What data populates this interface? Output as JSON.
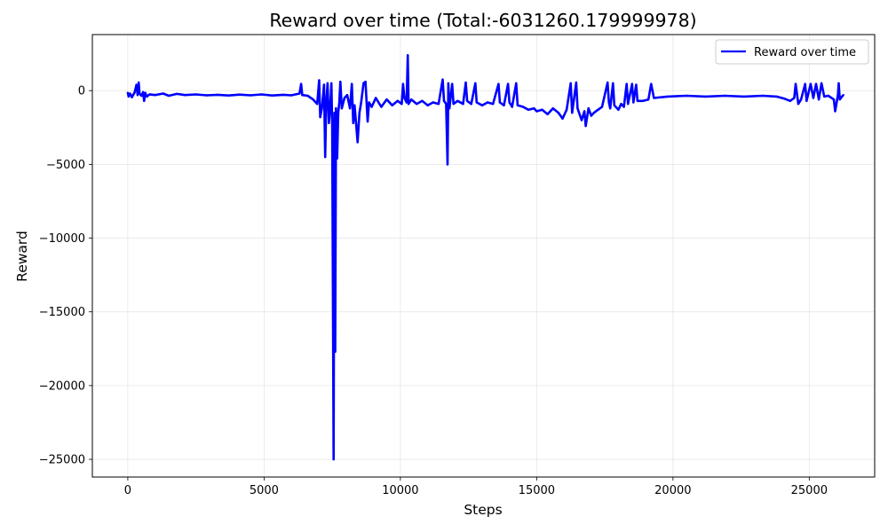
{
  "chart_data": {
    "type": "line",
    "title": "Reward over time (Total:-6031260.179999978)",
    "xlabel": "Steps",
    "ylabel": "Reward",
    "xlim": [
      -1300,
      27400
    ],
    "ylim": [
      -26200,
      3800
    ],
    "x_ticks": [
      0,
      5000,
      10000,
      15000,
      20000,
      25000
    ],
    "x_tick_labels": [
      "0",
      "5000",
      "10000",
      "15000",
      "20000",
      "25000"
    ],
    "y_ticks": [
      0,
      -5000,
      -10000,
      -15000,
      -20000,
      -25000
    ],
    "y_tick_labels": [
      "0",
      "−5000",
      "−10000",
      "−15000",
      "−20000",
      "−25000"
    ],
    "grid": true,
    "legend_position": "top-right",
    "series": [
      {
        "name": "Reward over time",
        "color": "#0000ff",
        "points": [
          [
            0,
            -150
          ],
          [
            30,
            -400
          ],
          [
            80,
            -200
          ],
          [
            150,
            -450
          ],
          [
            250,
            -120
          ],
          [
            320,
            400
          ],
          [
            360,
            -300
          ],
          [
            400,
            550
          ],
          [
            430,
            -200
          ],
          [
            500,
            -350
          ],
          [
            560,
            -100
          ],
          [
            600,
            -700
          ],
          [
            640,
            -150
          ],
          [
            700,
            -400
          ],
          [
            800,
            -250
          ],
          [
            1000,
            -300
          ],
          [
            1300,
            -200
          ],
          [
            1500,
            -350
          ],
          [
            1800,
            -220
          ],
          [
            2100,
            -300
          ],
          [
            2500,
            -260
          ],
          [
            2900,
            -320
          ],
          [
            3300,
            -280
          ],
          [
            3700,
            -330
          ],
          [
            4100,
            -270
          ],
          [
            4500,
            -320
          ],
          [
            4900,
            -260
          ],
          [
            5300,
            -330
          ],
          [
            5700,
            -280
          ],
          [
            6000,
            -320
          ],
          [
            6300,
            -200
          ],
          [
            6360,
            450
          ],
          [
            6400,
            -300
          ],
          [
            6600,
            -350
          ],
          [
            6800,
            -600
          ],
          [
            6950,
            -900
          ],
          [
            7020,
            700
          ],
          [
            7060,
            -1800
          ],
          [
            7120,
            -1200
          ],
          [
            7200,
            400
          ],
          [
            7240,
            -4500
          ],
          [
            7280,
            -800
          ],
          [
            7330,
            500
          ],
          [
            7380,
            -2200
          ],
          [
            7430,
            -1000
          ],
          [
            7470,
            500
          ],
          [
            7500,
            -2400
          ],
          [
            7550,
            -25000
          ],
          [
            7580,
            -1500
          ],
          [
            7610,
            -17700
          ],
          [
            7640,
            -1200
          ],
          [
            7680,
            -4600
          ],
          [
            7720,
            -1500
          ],
          [
            7760,
            -800
          ],
          [
            7800,
            600
          ],
          [
            7850,
            -1200
          ],
          [
            7950,
            -500
          ],
          [
            8050,
            -300
          ],
          [
            8150,
            -1200
          ],
          [
            8220,
            450
          ],
          [
            8270,
            -2200
          ],
          [
            8320,
            -1000
          ],
          [
            8380,
            -2300
          ],
          [
            8430,
            -3500
          ],
          [
            8500,
            -1500
          ],
          [
            8560,
            -800
          ],
          [
            8650,
            500
          ],
          [
            8720,
            600
          ],
          [
            8800,
            -2100
          ],
          [
            8850,
            -800
          ],
          [
            8950,
            -1100
          ],
          [
            9100,
            -500
          ],
          [
            9300,
            -1100
          ],
          [
            9500,
            -600
          ],
          [
            9700,
            -1000
          ],
          [
            9900,
            -700
          ],
          [
            10050,
            -900
          ],
          [
            10100,
            450
          ],
          [
            10150,
            -500
          ],
          [
            10230,
            -800
          ],
          [
            10270,
            2400
          ],
          [
            10300,
            -900
          ],
          [
            10400,
            -600
          ],
          [
            10600,
            -900
          ],
          [
            10800,
            -700
          ],
          [
            11000,
            -1000
          ],
          [
            11200,
            -800
          ],
          [
            11400,
            -900
          ],
          [
            11550,
            750
          ],
          [
            11600,
            -700
          ],
          [
            11680,
            -900
          ],
          [
            11730,
            -5000
          ],
          [
            11760,
            500
          ],
          [
            11800,
            -1200
          ],
          [
            11900,
            450
          ],
          [
            11950,
            -900
          ],
          [
            12100,
            -700
          ],
          [
            12300,
            -900
          ],
          [
            12400,
            550
          ],
          [
            12450,
            -700
          ],
          [
            12600,
            -900
          ],
          [
            12750,
            500
          ],
          [
            12800,
            -800
          ],
          [
            13000,
            -1000
          ],
          [
            13200,
            -800
          ],
          [
            13400,
            -900
          ],
          [
            13600,
            450
          ],
          [
            13650,
            -800
          ],
          [
            13800,
            -1000
          ],
          [
            13950,
            450
          ],
          [
            14000,
            -800
          ],
          [
            14100,
            -1100
          ],
          [
            14250,
            500
          ],
          [
            14300,
            -1000
          ],
          [
            14500,
            -1100
          ],
          [
            14700,
            -1300
          ],
          [
            14900,
            -1200
          ],
          [
            15000,
            -1400
          ],
          [
            15200,
            -1300
          ],
          [
            15400,
            -1600
          ],
          [
            15600,
            -1200
          ],
          [
            15800,
            -1500
          ],
          [
            15950,
            -1900
          ],
          [
            16100,
            -1300
          ],
          [
            16250,
            500
          ],
          [
            16300,
            -1500
          ],
          [
            16450,
            550
          ],
          [
            16500,
            -1200
          ],
          [
            16650,
            -2000
          ],
          [
            16750,
            -1400
          ],
          [
            16800,
            -2400
          ],
          [
            16900,
            -1200
          ],
          [
            17000,
            -1700
          ],
          [
            17100,
            -1500
          ],
          [
            17250,
            -1300
          ],
          [
            17400,
            -1100
          ],
          [
            17600,
            550
          ],
          [
            17650,
            -800
          ],
          [
            17700,
            -1200
          ],
          [
            17800,
            500
          ],
          [
            17850,
            -1000
          ],
          [
            18000,
            -1300
          ],
          [
            18100,
            -900
          ],
          [
            18200,
            -1100
          ],
          [
            18300,
            450
          ],
          [
            18350,
            -900
          ],
          [
            18500,
            450
          ],
          [
            18550,
            -800
          ],
          [
            18650,
            400
          ],
          [
            18700,
            -700
          ],
          [
            18900,
            -700
          ],
          [
            19100,
            -600
          ],
          [
            19200,
            450
          ],
          [
            19300,
            -500
          ],
          [
            19800,
            -400
          ],
          [
            20500,
            -350
          ],
          [
            21200,
            -400
          ],
          [
            21900,
            -350
          ],
          [
            22600,
            -400
          ],
          [
            23300,
            -350
          ],
          [
            23800,
            -400
          ],
          [
            24100,
            -550
          ],
          [
            24300,
            -700
          ],
          [
            24450,
            -500
          ],
          [
            24500,
            450
          ],
          [
            24600,
            -900
          ],
          [
            24700,
            -600
          ],
          [
            24850,
            450
          ],
          [
            24900,
            -700
          ],
          [
            25050,
            450
          ],
          [
            25150,
            -500
          ],
          [
            25250,
            450
          ],
          [
            25350,
            -600
          ],
          [
            25450,
            500
          ],
          [
            25550,
            -400
          ],
          [
            25700,
            -350
          ],
          [
            25900,
            -600
          ],
          [
            25950,
            -1400
          ],
          [
            26050,
            -300
          ],
          [
            26080,
            500
          ],
          [
            26120,
            -600
          ],
          [
            26200,
            -400
          ],
          [
            26250,
            -300
          ]
        ]
      }
    ]
  }
}
